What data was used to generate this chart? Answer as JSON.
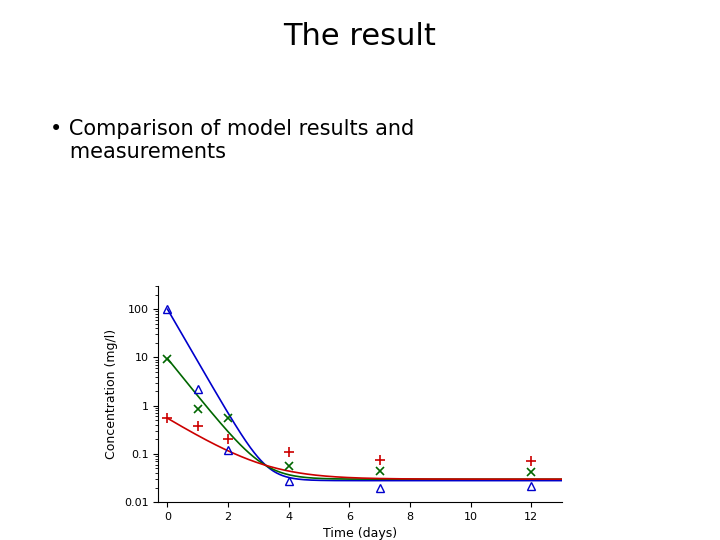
{
  "title": "The result",
  "bullet_text": "Comparison of model results and\nmeasurements",
  "xlabel": "Time (days)",
  "ylabel": "Concentration (mg/l)",
  "xlim": [
    -0.3,
    13
  ],
  "ylim": [
    0.01,
    300
  ],
  "background_color": "#ffffff",
  "blue_marker_x": [
    0,
    1,
    2,
    4,
    7,
    12
  ],
  "blue_marker_y": [
    100,
    2.2,
    0.12,
    0.027,
    0.02,
    0.022
  ],
  "blue_color": "#0000cc",
  "green_marker_x": [
    0,
    1,
    2,
    4,
    7,
    12
  ],
  "green_marker_y": [
    9.5,
    0.85,
    0.55,
    0.055,
    0.045,
    0.042
  ],
  "green_color": "#006600",
  "red_marker_x": [
    0,
    1,
    2,
    4,
    7,
    12
  ],
  "red_marker_y": [
    0.55,
    0.38,
    0.2,
    0.11,
    0.075,
    0.07
  ],
  "red_color": "#cc0000",
  "blue_curve_params": {
    "C0": 100,
    "k": 2.5,
    "Cmin": 0.028
  },
  "green_curve_params": {
    "C0": 9.5,
    "k": 1.8,
    "Cmin": 0.03
  },
  "red_curve_params": {
    "C0": 0.55,
    "k": 0.9,
    "Cmin": 0.03
  },
  "title_fontsize": 22,
  "bullet_fontsize": 15,
  "axis_label_fontsize": 9,
  "tick_fontsize": 8
}
